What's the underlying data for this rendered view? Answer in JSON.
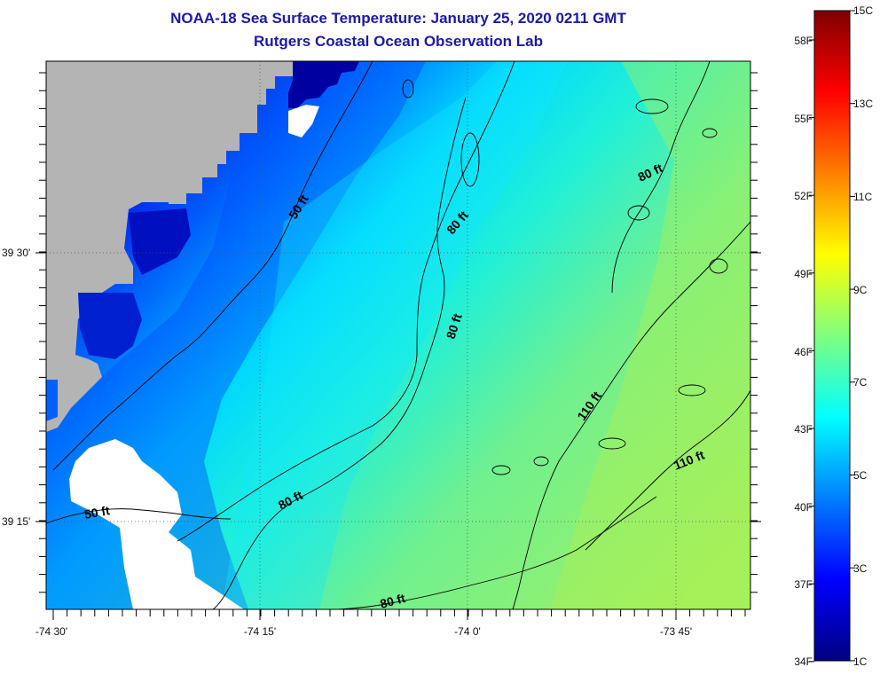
{
  "title": "NOAA-18 Sea Surface Temperature:  January 25, 2020 0211 GMT",
  "subtitle": "Rutgers Coastal Ocean Observation Lab",
  "map": {
    "lat_labels": [
      "39 30'",
      "39 15'"
    ],
    "lon_labels": [
      "-74 30'",
      "-74 15'",
      "-74 0'",
      "-73 45'"
    ],
    "contour_labels": [
      "50 ft",
      "80 ft",
      "80 ft",
      "80 ft",
      "110 ft",
      "110 ft",
      "50 ft",
      "80 ft",
      "80 ft"
    ],
    "colors": {
      "land": "#b4b4b4",
      "cloud_mask": "#ffffff",
      "contour_line": "#000000"
    }
  },
  "colorbar": {
    "fahrenheit": [
      "58F",
      "55F",
      "52F",
      "49F",
      "46F",
      "43F",
      "40F",
      "37F",
      "34F"
    ],
    "celsius": [
      "15C",
      "13C",
      "11C",
      "9C",
      "7C",
      "5C",
      "3C",
      "1C"
    ],
    "min_c": 1,
    "max_c": 15,
    "stops": [
      "#00007f",
      "#0000ff",
      "#007fff",
      "#00ffff",
      "#7fff7f",
      "#ffff00",
      "#ff7f00",
      "#ff0000",
      "#7f0000"
    ]
  }
}
